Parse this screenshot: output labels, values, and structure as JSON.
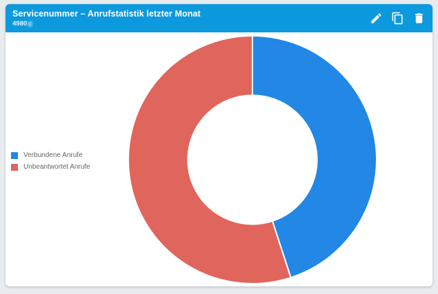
{
  "header": {
    "title": "Servicenummer – Anrufstatistik letzter Monat",
    "subtitle": "4980",
    "background_color": "#0d99dd",
    "text_color": "#ffffff",
    "actions": [
      {
        "label": "edit",
        "icon": "pencil-icon"
      },
      {
        "label": "duplicate",
        "icon": "copy-icon"
      },
      {
        "label": "delete",
        "icon": "trash-icon"
      }
    ]
  },
  "chart_data": {
    "type": "pie",
    "donut": true,
    "labels": [
      "Verbundene Anrufe",
      "Unbeantwortet Anrufe"
    ],
    "values": [
      45,
      55
    ],
    "colors": [
      "#2287e5",
      "#e0655c"
    ],
    "start_angle_deg": 0,
    "clockwise": true,
    "inner_radius_ratio": 0.52,
    "legend_position": "left",
    "data_labels_shown": false,
    "title": ""
  },
  "card": {
    "background_color": "#ffffff",
    "page_background_color": "#e8ecef"
  }
}
